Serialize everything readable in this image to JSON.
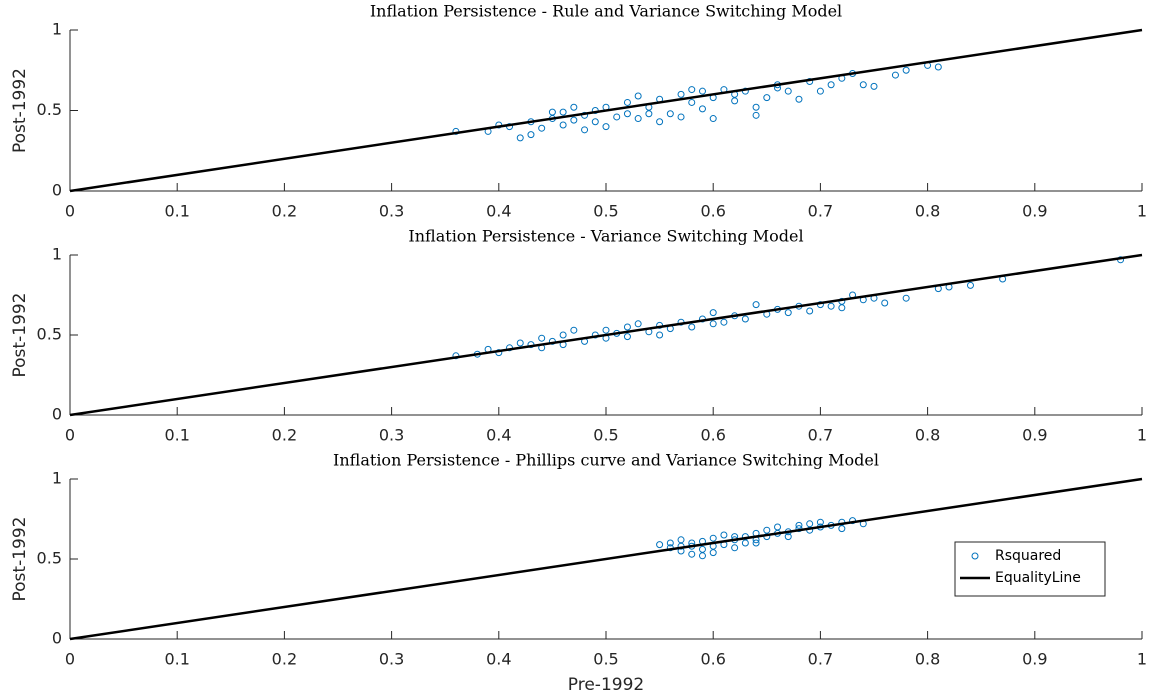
{
  "chart_data": [
    {
      "type": "scatter",
      "title": "Inflation Persistence - Rule and Variance Switching Model",
      "ylabel": "Post-1992",
      "xlim": [
        0,
        1
      ],
      "ylim": [
        0,
        1
      ],
      "xticks": [
        0,
        0.1,
        0.2,
        0.3,
        0.4,
        0.5,
        0.6,
        0.7,
        0.8,
        0.9,
        1
      ],
      "yticks": [
        0,
        0.5,
        1
      ],
      "series": [
        {
          "color": "#0072bd",
          "marker": "circle",
          "x": [
            0.36,
            0.39,
            0.4,
            0.41,
            0.42,
            0.43,
            0.43,
            0.44,
            0.45,
            0.46,
            0.46,
            0.47,
            0.47,
            0.48,
            0.48,
            0.49,
            0.49,
            0.5,
            0.5,
            0.51,
            0.52,
            0.52,
            0.53,
            0.53,
            0.54,
            0.55,
            0.55,
            0.56,
            0.57,
            0.57,
            0.58,
            0.59,
            0.59,
            0.6,
            0.6,
            0.61,
            0.62,
            0.62,
            0.63,
            0.64,
            0.65,
            0.66,
            0.66,
            0.67,
            0.68,
            0.69,
            0.7,
            0.71,
            0.72,
            0.73,
            0.74,
            0.75,
            0.77,
            0.78,
            0.8,
            0.81,
            0.64,
            0.58,
            0.54,
            0.45
          ],
          "values": [
            0.37,
            0.37,
            0.41,
            0.4,
            0.33,
            0.35,
            0.43,
            0.39,
            0.45,
            0.49,
            0.41,
            0.52,
            0.44,
            0.47,
            0.38,
            0.5,
            0.43,
            0.52,
            0.4,
            0.46,
            0.55,
            0.48,
            0.59,
            0.45,
            0.52,
            0.57,
            0.43,
            0.48,
            0.6,
            0.46,
            0.55,
            0.62,
            0.51,
            0.58,
            0.45,
            0.63,
            0.56,
            0.6,
            0.62,
            0.52,
            0.58,
            0.66,
            0.64,
            0.62,
            0.57,
            0.68,
            0.62,
            0.66,
            0.7,
            0.73,
            0.66,
            0.65,
            0.72,
            0.75,
            0.78,
            0.77,
            0.47,
            0.63,
            0.48,
            0.49
          ]
        },
        {
          "color": "#000000",
          "marker": "line",
          "x": [
            0,
            1
          ],
          "values": [
            0,
            1
          ]
        }
      ]
    },
    {
      "type": "scatter",
      "title": "Inflation Persistence - Variance Switching Model",
      "ylabel": "Post-1992",
      "xlim": [
        0,
        1
      ],
      "ylim": [
        0,
        1
      ],
      "xticks": [
        0,
        0.1,
        0.2,
        0.3,
        0.4,
        0.5,
        0.6,
        0.7,
        0.8,
        0.9,
        1
      ],
      "yticks": [
        0,
        0.5,
        1
      ],
      "series": [
        {
          "color": "#0072bd",
          "marker": "circle",
          "x": [
            0.36,
            0.38,
            0.39,
            0.4,
            0.41,
            0.42,
            0.43,
            0.44,
            0.44,
            0.45,
            0.46,
            0.46,
            0.47,
            0.48,
            0.49,
            0.5,
            0.5,
            0.51,
            0.52,
            0.52,
            0.53,
            0.54,
            0.55,
            0.55,
            0.56,
            0.57,
            0.58,
            0.59,
            0.6,
            0.6,
            0.61,
            0.62,
            0.63,
            0.64,
            0.65,
            0.66,
            0.67,
            0.68,
            0.69,
            0.7,
            0.71,
            0.72,
            0.73,
            0.74,
            0.75,
            0.76,
            0.78,
            0.81,
            0.82,
            0.84,
            0.87,
            0.98,
            0.72
          ],
          "values": [
            0.37,
            0.38,
            0.41,
            0.39,
            0.42,
            0.45,
            0.44,
            0.48,
            0.42,
            0.46,
            0.5,
            0.44,
            0.53,
            0.46,
            0.5,
            0.48,
            0.53,
            0.51,
            0.55,
            0.49,
            0.57,
            0.52,
            0.56,
            0.5,
            0.54,
            0.58,
            0.55,
            0.6,
            0.57,
            0.64,
            0.58,
            0.62,
            0.6,
            0.69,
            0.63,
            0.66,
            0.64,
            0.68,
            0.65,
            0.69,
            0.68,
            0.71,
            0.75,
            0.72,
            0.73,
            0.7,
            0.73,
            0.79,
            0.8,
            0.81,
            0.85,
            0.97,
            0.67
          ]
        },
        {
          "color": "#000000",
          "marker": "line",
          "x": [
            0,
            1
          ],
          "values": [
            0,
            1
          ]
        }
      ]
    },
    {
      "type": "scatter",
      "title": "Inflation Persistence - Phillips curve and Variance Switching Model",
      "ylabel": "Post-1992",
      "xlabel": "Pre-1992",
      "xlim": [
        0,
        1
      ],
      "ylim": [
        0,
        1
      ],
      "xticks": [
        0,
        0.1,
        0.2,
        0.3,
        0.4,
        0.5,
        0.6,
        0.7,
        0.8,
        0.9,
        1
      ],
      "yticks": [
        0,
        0.5,
        1
      ],
      "legend": "east",
      "series": [
        {
          "name": "Rsquared",
          "color": "#0072bd",
          "marker": "circle",
          "x": [
            0.55,
            0.56,
            0.56,
            0.57,
            0.57,
            0.58,
            0.58,
            0.59,
            0.59,
            0.6,
            0.6,
            0.61,
            0.61,
            0.62,
            0.62,
            0.63,
            0.63,
            0.64,
            0.64,
            0.65,
            0.65,
            0.66,
            0.66,
            0.67,
            0.67,
            0.68,
            0.68,
            0.69,
            0.69,
            0.7,
            0.7,
            0.71,
            0.72,
            0.72,
            0.73,
            0.74,
            0.58,
            0.6,
            0.62,
            0.64,
            0.59,
            0.57
          ],
          "values": [
            0.59,
            0.57,
            0.6,
            0.55,
            0.62,
            0.58,
            0.53,
            0.61,
            0.56,
            0.63,
            0.54,
            0.59,
            0.65,
            0.62,
            0.57,
            0.64,
            0.6,
            0.66,
            0.62,
            0.68,
            0.64,
            0.66,
            0.7,
            0.67,
            0.64,
            0.69,
            0.71,
            0.68,
            0.72,
            0.7,
            0.73,
            0.71,
            0.73,
            0.69,
            0.74,
            0.72,
            0.6,
            0.58,
            0.64,
            0.6,
            0.52,
            0.58
          ]
        },
        {
          "name": "EqualityLine",
          "color": "#000000",
          "marker": "line",
          "x": [
            0,
            1
          ],
          "values": [
            0,
            1
          ]
        }
      ]
    }
  ]
}
